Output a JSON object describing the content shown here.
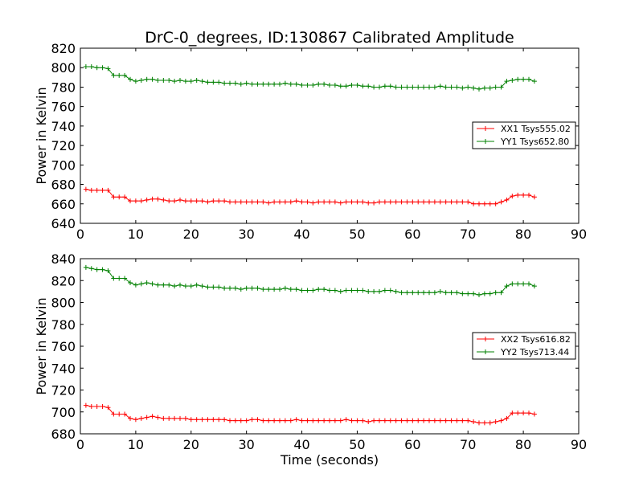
{
  "figure": {
    "title": "DrC-0_degrees, ID:130867 Calibrated Amplitude"
  },
  "colors": {
    "XX": "#ff0000",
    "YY": "#008000",
    "frame": "#000000",
    "background": "#ffffff"
  },
  "chart_data": [
    {
      "type": "line",
      "title": "DrC-0_degrees, ID:130867 Calibrated Amplitude",
      "xlabel": "",
      "ylabel": "Power in Kelvin",
      "xlim": [
        0,
        90
      ],
      "ylim": [
        640,
        820
      ],
      "xticks": [
        0,
        10,
        20,
        30,
        40,
        50,
        60,
        70,
        80,
        90
      ],
      "yticks": [
        640,
        660,
        680,
        700,
        720,
        740,
        760,
        780,
        800,
        820
      ],
      "grid": false,
      "legend_position": "right",
      "x": [
        1,
        2,
        3,
        4,
        5,
        6,
        7,
        8,
        9,
        10,
        11,
        12,
        13,
        14,
        15,
        16,
        17,
        18,
        19,
        20,
        21,
        22,
        23,
        24,
        25,
        26,
        27,
        28,
        29,
        30,
        31,
        32,
        33,
        34,
        35,
        36,
        37,
        38,
        39,
        40,
        41,
        42,
        43,
        44,
        45,
        46,
        47,
        48,
        49,
        50,
        51,
        52,
        53,
        54,
        55,
        56,
        57,
        58,
        59,
        60,
        61,
        62,
        63,
        64,
        65,
        66,
        67,
        68,
        69,
        70,
        71,
        72,
        73,
        74,
        75,
        76,
        77,
        78,
        79,
        80,
        81,
        82
      ],
      "series": [
        {
          "name": "XX1 Tsys555.02",
          "color": "#ff0000",
          "values": [
            675,
            674,
            674,
            674,
            674,
            667,
            667,
            667,
            663,
            663,
            663,
            664,
            665,
            665,
            664,
            663,
            663,
            664,
            663,
            663,
            663,
            663,
            662,
            663,
            663,
            663,
            662,
            662,
            662,
            662,
            662,
            662,
            662,
            661,
            662,
            662,
            662,
            662,
            663,
            662,
            662,
            661,
            662,
            662,
            662,
            662,
            661,
            662,
            662,
            662,
            662,
            661,
            661,
            662,
            662,
            662,
            662,
            662,
            662,
            662,
            662,
            662,
            662,
            662,
            662,
            662,
            662,
            662,
            662,
            662,
            660,
            660,
            660,
            660,
            660,
            662,
            664,
            668,
            669,
            669,
            669,
            667
          ]
        },
        {
          "name": "YY1 Tsys652.80",
          "color": "#008000",
          "values": [
            801,
            801,
            800,
            800,
            799,
            792,
            792,
            792,
            788,
            786,
            787,
            788,
            788,
            787,
            787,
            787,
            786,
            787,
            786,
            786,
            787,
            786,
            785,
            785,
            785,
            784,
            784,
            784,
            783,
            784,
            783,
            783,
            783,
            783,
            783,
            783,
            784,
            783,
            783,
            782,
            782,
            782,
            783,
            783,
            782,
            782,
            781,
            781,
            782,
            782,
            781,
            781,
            780,
            780,
            781,
            781,
            780,
            780,
            780,
            780,
            780,
            780,
            780,
            780,
            781,
            780,
            780,
            780,
            779,
            780,
            779,
            778,
            779,
            779,
            780,
            780,
            786,
            787,
            788,
            788,
            788,
            786
          ]
        }
      ]
    },
    {
      "type": "line",
      "title": "",
      "xlabel": "Time (seconds)",
      "ylabel": "Power in Kelvin",
      "xlim": [
        0,
        90
      ],
      "ylim": [
        680,
        840
      ],
      "xticks": [
        0,
        10,
        20,
        30,
        40,
        50,
        60,
        70,
        80,
        90
      ],
      "yticks": [
        680,
        700,
        720,
        740,
        760,
        780,
        800,
        820,
        840
      ],
      "grid": false,
      "legend_position": "right",
      "x": [
        1,
        2,
        3,
        4,
        5,
        6,
        7,
        8,
        9,
        10,
        11,
        12,
        13,
        14,
        15,
        16,
        17,
        18,
        19,
        20,
        21,
        22,
        23,
        24,
        25,
        26,
        27,
        28,
        29,
        30,
        31,
        32,
        33,
        34,
        35,
        36,
        37,
        38,
        39,
        40,
        41,
        42,
        43,
        44,
        45,
        46,
        47,
        48,
        49,
        50,
        51,
        52,
        53,
        54,
        55,
        56,
        57,
        58,
        59,
        60,
        61,
        62,
        63,
        64,
        65,
        66,
        67,
        68,
        69,
        70,
        71,
        72,
        73,
        74,
        75,
        76,
        77,
        78,
        79,
        80,
        81,
        82
      ],
      "series": [
        {
          "name": "XX2 Tsys616.82",
          "color": "#ff0000",
          "values": [
            706,
            705,
            705,
            705,
            704,
            698,
            698,
            698,
            694,
            693,
            694,
            695,
            696,
            695,
            694,
            694,
            694,
            694,
            694,
            693,
            693,
            693,
            693,
            693,
            693,
            693,
            692,
            692,
            692,
            692,
            693,
            693,
            692,
            692,
            692,
            692,
            692,
            692,
            693,
            692,
            692,
            692,
            692,
            692,
            692,
            692,
            692,
            693,
            692,
            692,
            692,
            691,
            692,
            692,
            692,
            692,
            692,
            692,
            692,
            692,
            692,
            692,
            692,
            692,
            692,
            692,
            692,
            692,
            692,
            692,
            691,
            690,
            690,
            690,
            691,
            692,
            694,
            699,
            699,
            699,
            699,
            698
          ]
        },
        {
          "name": "YY2 Tsys713.44",
          "color": "#008000",
          "values": [
            832,
            831,
            830,
            830,
            829,
            822,
            822,
            822,
            818,
            816,
            817,
            818,
            817,
            816,
            816,
            816,
            815,
            816,
            815,
            815,
            816,
            815,
            814,
            814,
            814,
            813,
            813,
            813,
            812,
            813,
            813,
            813,
            812,
            812,
            812,
            812,
            813,
            812,
            812,
            811,
            811,
            811,
            812,
            812,
            811,
            811,
            810,
            811,
            811,
            811,
            811,
            810,
            810,
            810,
            811,
            811,
            810,
            809,
            809,
            809,
            809,
            809,
            809,
            809,
            810,
            809,
            809,
            809,
            808,
            808,
            808,
            807,
            808,
            808,
            809,
            809,
            815,
            817,
            817,
            817,
            817,
            815
          ]
        }
      ]
    }
  ]
}
